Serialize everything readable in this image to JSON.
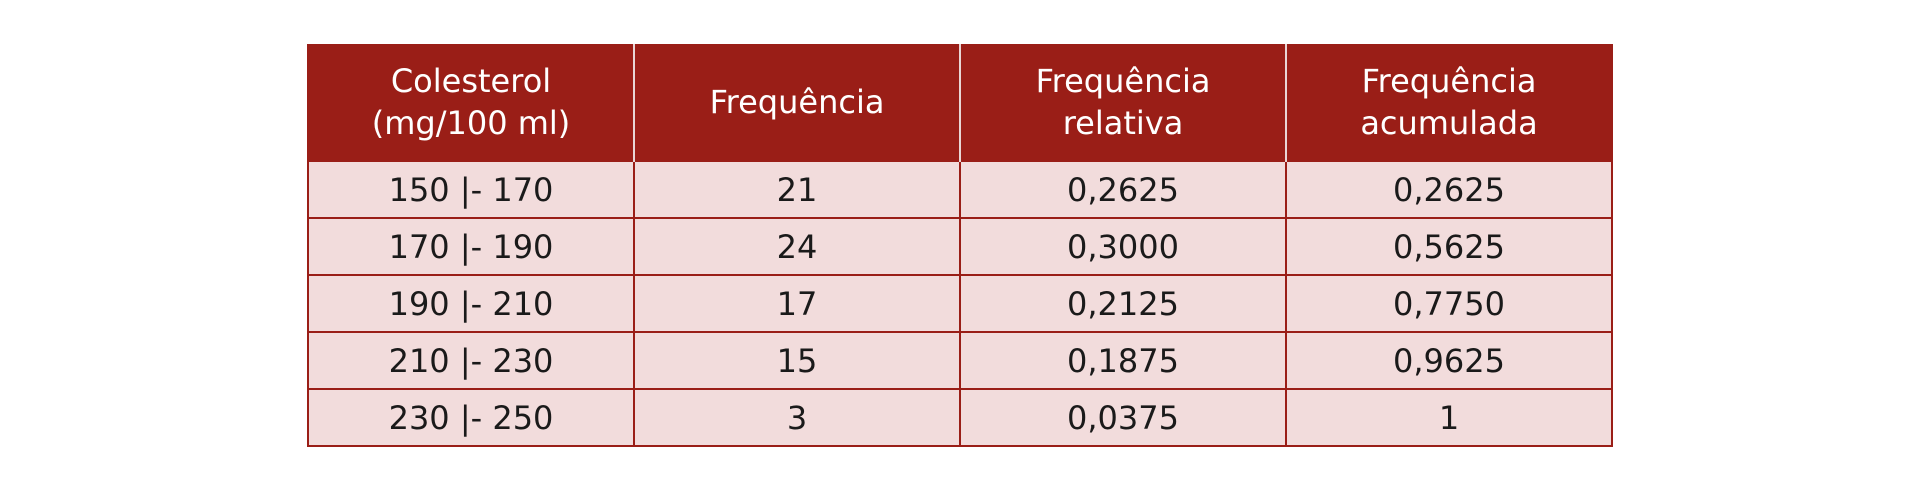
{
  "table": {
    "headers": [
      {
        "line1": "Colesterol",
        "line2": "(mg/100 ml)"
      },
      {
        "line1": "Frequência",
        "line2": ""
      },
      {
        "line1": "Frequência",
        "line2": "relativa"
      },
      {
        "line1": "Frequência",
        "line2": "acumulada"
      }
    ],
    "rows": [
      [
        "150 |- 170",
        "21",
        "0,2625",
        "0,2625"
      ],
      [
        "170 |- 190",
        "24",
        "0,3000",
        "0,5625"
      ],
      [
        "190 |- 210",
        "17",
        "0,2125",
        "0,7750"
      ],
      [
        "210 |- 230",
        "15",
        "0,1875",
        "0,9625"
      ],
      [
        "230 |- 250",
        "3",
        "0,0375",
        "1"
      ]
    ],
    "colors": {
      "header_bg": "#9a1e17",
      "header_text": "#ffffff",
      "row_bg": "#f2dcdc",
      "border": "#9a1e17"
    }
  }
}
